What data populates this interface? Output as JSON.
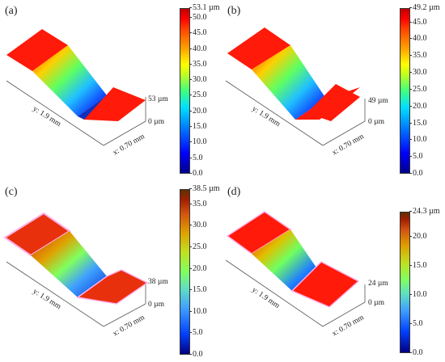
{
  "panels": [
    {
      "label": "(a)",
      "max_value": 53.1,
      "colorbar_ticks": [
        "53.1 µm",
        "50.0",
        "45.0",
        "40.0",
        "35.0",
        "30.0",
        "25.0",
        "20.0",
        "15.0",
        "10.0",
        "5.0",
        "0.0"
      ],
      "z_top": "53 µm",
      "z_bottom": "0 µm",
      "y_axis": "y: 1.9 mm",
      "x_axis": "x: 0.70 mm",
      "scheme": "jet",
      "step": "deep-narrow-trench"
    },
    {
      "label": "(b)",
      "max_value": 49.2,
      "colorbar_ticks": [
        "49.2 µm",
        "45.0",
        "40.0",
        "35.0",
        "30.0",
        "25.0",
        "20.0",
        "15.0",
        "10.0",
        "5.0",
        "0.0"
      ],
      "z_top": "49 µm",
      "z_bottom": "0 µm",
      "y_axis": "y: 1.9 mm",
      "x_axis": "x: 0.70 mm",
      "scheme": "jet",
      "step": "step"
    },
    {
      "label": "(c)",
      "max_value": 38.5,
      "colorbar_ticks": [
        "38.5 µm",
        "35.0",
        "30.0",
        "25.0",
        "20.0",
        "15.0",
        "10.0",
        "5.0",
        "0.0"
      ],
      "z_top": "38 µm",
      "z_bottom": "0 µm",
      "y_axis": "y: 1.9 mm",
      "x_axis": "x: 0.70 mm",
      "scheme": "jet-brown",
      "step": "wide-step"
    },
    {
      "label": "(d)",
      "max_value": 24.3,
      "colorbar_ticks": [
        "24.3 µm",
        "20.0",
        "15.0",
        "10.0",
        "5.0",
        "0.0"
      ],
      "z_top": "24 µm",
      "z_bottom": "0 µm",
      "y_axis": "y: 1.9 mm",
      "x_axis": "x: 0.70 mm",
      "scheme": "jet-brown",
      "step": "shallow-step"
    }
  ],
  "colors": {
    "jet": [
      "#00008b",
      "#0000ff",
      "#0080ff",
      "#00e0ff",
      "#40ff80",
      "#a0ff20",
      "#ffff00",
      "#ffa000",
      "#ff4000",
      "#ff0000",
      "#c00000"
    ],
    "jet_brown": [
      "#000080",
      "#0040ff",
      "#40a0ff",
      "#60e0c0",
      "#80ff60",
      "#c0e020",
      "#e0a000",
      "#d05010",
      "#a02000",
      "#603000"
    ],
    "surface_high": "#ff1a0a",
    "surface_low": "#ff1a0a"
  }
}
